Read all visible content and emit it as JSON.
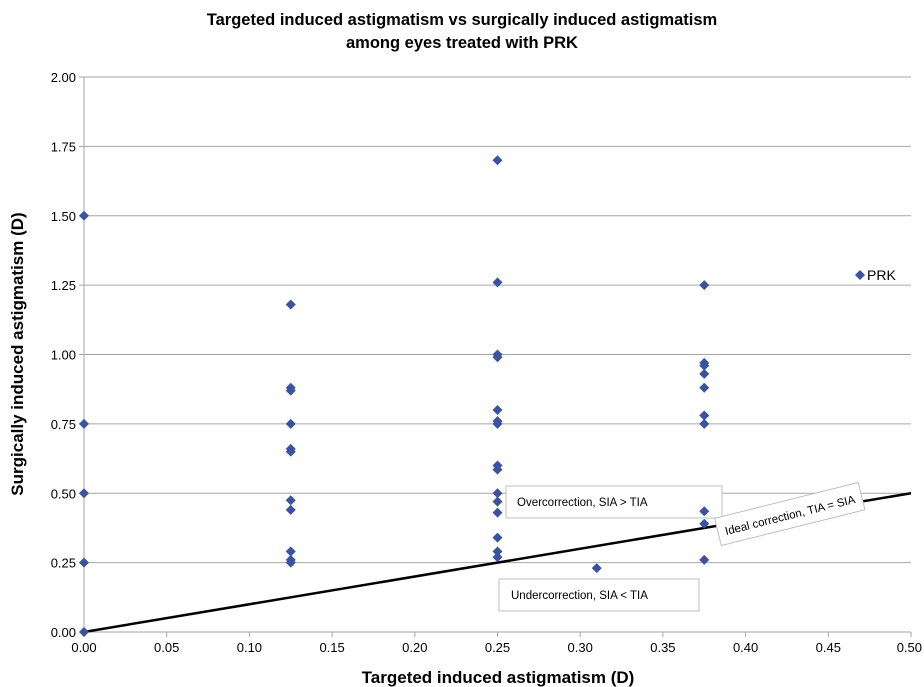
{
  "chart_data": {
    "type": "scatter",
    "title_line1": "Targeted induced astigmatism vs surgically induced astigmatism",
    "title_line2": "among eyes treated with PRK",
    "xlabel": "Targeted induced astigmatism (D)",
    "ylabel": "Surgically induced astigmatism (D)",
    "xlim": [
      0,
      0.5
    ],
    "ylim": [
      0,
      2
    ],
    "x_ticks": [
      "0.00",
      "0.05",
      "0.10",
      "0.15",
      "0.20",
      "0.25",
      "0.30",
      "0.35",
      "0.40",
      "0.45",
      "0.50"
    ],
    "y_ticks": [
      "0.00",
      "0.25",
      "0.50",
      "0.75",
      "1.00",
      "1.25",
      "1.50",
      "1.75",
      "2.00"
    ],
    "grid": "horizontal",
    "legend_position": "right",
    "marker_color": "#3953a4",
    "line_color": "#000000",
    "series": [
      {
        "name": "PRK",
        "points": [
          [
            0,
            0
          ],
          [
            0,
            0.25
          ],
          [
            0,
            0.5
          ],
          [
            0,
            0.75
          ],
          [
            0,
            1.5
          ],
          [
            0.125,
            0.25
          ],
          [
            0.125,
            0.26
          ],
          [
            0.125,
            0.29
          ],
          [
            0.125,
            0.44
          ],
          [
            0.125,
            0.475
          ],
          [
            0.125,
            0.65
          ],
          [
            0.125,
            0.66
          ],
          [
            0.125,
            0.75
          ],
          [
            0.125,
            0.87
          ],
          [
            0.125,
            0.88
          ],
          [
            0.125,
            1.18
          ],
          [
            0.25,
            0.27
          ],
          [
            0.25,
            0.29
          ],
          [
            0.25,
            0.34
          ],
          [
            0.25,
            0.43
          ],
          [
            0.25,
            0.47
          ],
          [
            0.25,
            0.5
          ],
          [
            0.25,
            0.585
          ],
          [
            0.25,
            0.6
          ],
          [
            0.25,
            0.75
          ],
          [
            0.25,
            0.76
          ],
          [
            0.25,
            0.8
          ],
          [
            0.25,
            0.99
          ],
          [
            0.25,
            1.0
          ],
          [
            0.25,
            1.26
          ],
          [
            0.25,
            1.7
          ],
          [
            0.31,
            0.23
          ],
          [
            0.375,
            0.26
          ],
          [
            0.375,
            0.39
          ],
          [
            0.375,
            0.435
          ],
          [
            0.375,
            0.75
          ],
          [
            0.375,
            0.78
          ],
          [
            0.375,
            0.88
          ],
          [
            0.375,
            0.93
          ],
          [
            0.375,
            0.96
          ],
          [
            0.375,
            0.97
          ],
          [
            0.375,
            1.25
          ]
        ]
      }
    ],
    "reference_line": {
      "from": [
        0,
        0
      ],
      "to": [
        0.5,
        0.5
      ]
    },
    "annotations": {
      "over": "Overcorrection, SIA > TIA",
      "under": "Undercorrection, SIA < TIA",
      "ideal": "Ideal correction, TIA = SIA"
    }
  }
}
